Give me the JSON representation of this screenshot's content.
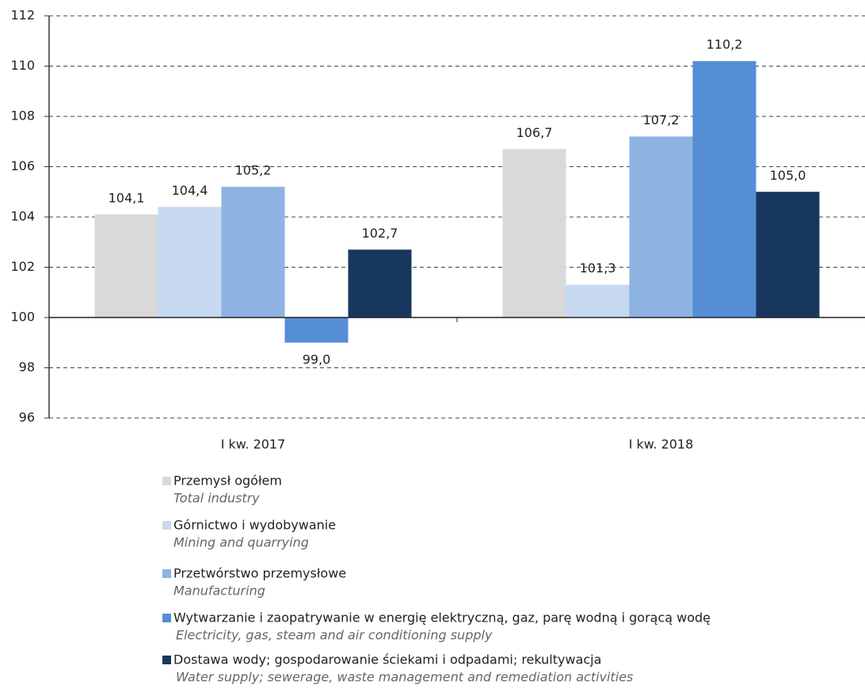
{
  "chart_data": {
    "type": "bar",
    "categories": [
      "I kw. 2017",
      "I kw. 2018"
    ],
    "baseline": 100,
    "ylim": [
      96,
      112
    ],
    "yticks": [
      96,
      98,
      100,
      102,
      104,
      106,
      108,
      110,
      112
    ],
    "grid": true,
    "series": [
      {
        "name": "Przemysł ogółem",
        "subtitle": "Total industry",
        "color": "#d9d9d9",
        "values": [
          104.1,
          106.7
        ],
        "value_labels": [
          "104,1",
          "106,7"
        ]
      },
      {
        "name": "Górnictwo i wydobywanie",
        "subtitle": "Mining and quarrying",
        "color": "#c6d9f1",
        "values": [
          104.4,
          101.3
        ],
        "value_labels": [
          "104,4",
          "101,3"
        ]
      },
      {
        "name": "Przetwórstwo przemysłowe",
        "subtitle": "Manufacturing",
        "color": "#8db3e2",
        "values": [
          105.2,
          107.2
        ],
        "value_labels": [
          "105,2",
          "107,2"
        ]
      },
      {
        "name": "Wytwarzanie i zaopatrywanie w energię elektryczną, gaz, parę wodną i gorącą wodę",
        "subtitle": "Electricity, gas, steam and air conditioning supply",
        "color": "#558ed5",
        "values": [
          99.0,
          110.2
        ],
        "value_labels": [
          "99,0",
          "110,2"
        ]
      },
      {
        "name": "Dostawa wody; gospodarowanie ściekami i odpadami; rekultywacja",
        "subtitle": "Water supply; sewerage, waste management and remediation activities",
        "color": "#17375e",
        "values": [
          102.7,
          105.0
        ],
        "value_labels": [
          "102,7",
          "105,0"
        ]
      }
    ]
  }
}
